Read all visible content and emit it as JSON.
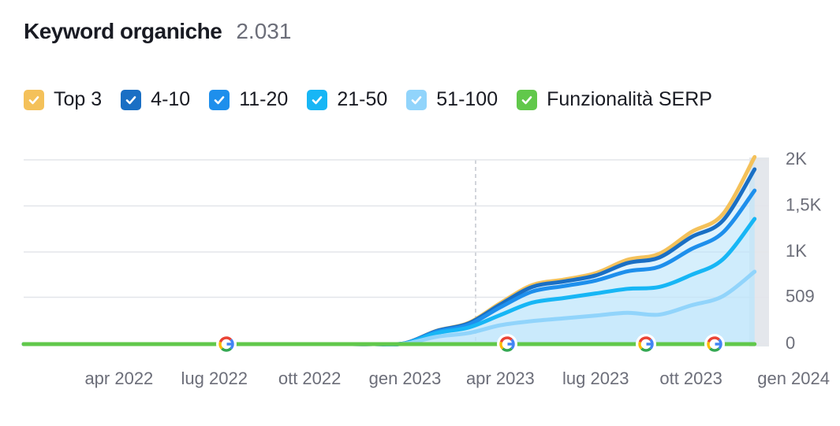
{
  "chart_data": {
    "type": "stacked-line",
    "title": "Keyword organiche",
    "subtitle": "2.031",
    "x": [
      "2022-01",
      "2022-02",
      "2022-03",
      "2022-04",
      "2022-05",
      "2022-06",
      "2022-07",
      "2022-08",
      "2022-09",
      "2022-10",
      "2022-11",
      "2022-12",
      "2023-01",
      "2023-02",
      "2023-03",
      "2023-04",
      "2023-05",
      "2023-06",
      "2023-07",
      "2023-08",
      "2023-09",
      "2023-10",
      "2023-11",
      "2023-12"
    ],
    "series": [
      {
        "name": "Top 3",
        "color": "#f4c15a",
        "values": [
          0,
          0,
          0,
          0,
          0,
          0,
          0,
          0,
          0,
          0,
          0,
          0,
          0,
          2,
          5,
          15,
          20,
          20,
          25,
          35,
          40,
          55,
          70,
          134
        ]
      },
      {
        "name": "4-10",
        "color": "#1a6fc4",
        "values": [
          0,
          0,
          0,
          0,
          0,
          0,
          0,
          0,
          0,
          0,
          0,
          0,
          1,
          8,
          15,
          30,
          50,
          50,
          55,
          90,
          100,
          130,
          130,
          230
        ]
      },
      {
        "name": "11-20",
        "color": "#1e8fec",
        "values": [
          0,
          0,
          0,
          0,
          0,
          0,
          0,
          0,
          0,
          0,
          0,
          0,
          1,
          15,
          30,
          84,
          120,
          130,
          140,
          190,
          220,
          280,
          290,
          308
        ]
      },
      {
        "name": "21-50",
        "color": "#17b6f5",
        "values": [
          0,
          0,
          0,
          0,
          0,
          0,
          0,
          0,
          0,
          0,
          0,
          0,
          3,
          40,
          60,
          111,
          200,
          220,
          240,
          260,
          300,
          330,
          400,
          573
        ]
      },
      {
        "name": "51-100",
        "color": "#91d4fb",
        "values": [
          0,
          0,
          0,
          0,
          0,
          0,
          0,
          0,
          0,
          0,
          0,
          0,
          5,
          80,
          120,
          205,
          250,
          280,
          310,
          340,
          320,
          420,
          520,
          786
        ]
      },
      {
        "name": "Funzionalità SERP",
        "color": "#61c84b",
        "values": [
          0,
          0,
          0,
          0,
          0,
          0,
          0,
          0,
          0,
          0,
          0,
          0,
          0,
          0,
          0,
          0,
          0,
          0,
          0,
          0,
          0,
          0,
          0,
          0
        ]
      }
    ],
    "xlim": [
      "2022-01",
      "2024-01"
    ],
    "xticks": [
      {
        "value": "2022-04",
        "label": "apr 2022"
      },
      {
        "value": "2022-07",
        "label": "lug 2022"
      },
      {
        "value": "2022-10",
        "label": "ott 2022"
      },
      {
        "value": "2023-01",
        "label": "gen 2023"
      },
      {
        "value": "2023-04",
        "label": "apr 2023"
      },
      {
        "value": "2023-07",
        "label": "lug 2023"
      },
      {
        "value": "2023-10",
        "label": "ott 2023"
      },
      {
        "value": "2024-01",
        "label": "gen 2024"
      }
    ],
    "ylim": [
      0,
      2000
    ],
    "yticks": [
      0,
      509,
      {
        "value": 1000,
        "label": "1K"
      },
      {
        "value": 1500,
        "label": "1,5K"
      },
      {
        "value": 2000,
        "label": "2K"
      }
    ],
    "grid": true,
    "stacked": true
  }
}
